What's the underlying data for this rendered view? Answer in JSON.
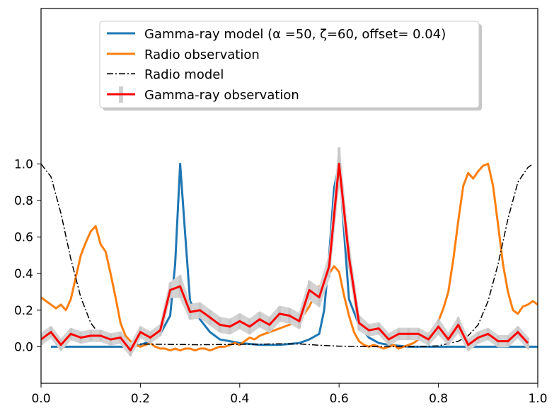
{
  "chart_data": {
    "type": "line",
    "title": "",
    "xlabel": "",
    "ylabel": "",
    "xlim": [
      0.0,
      1.0
    ],
    "ylim": [
      -0.2,
      1.85
    ],
    "x_ticks": [
      0.0,
      0.2,
      0.4,
      0.6,
      0.8,
      1.0
    ],
    "x_tick_labels": [
      "0.0",
      "0.2",
      "0.4",
      "0.6",
      "0.8",
      "1.0"
    ],
    "y_ticks": [
      0.0,
      0.2,
      0.4,
      0.6,
      0.8,
      1.0
    ],
    "y_tick_labels": [
      "0.0",
      "0.2",
      "0.4",
      "0.6",
      "0.8",
      "1.0"
    ],
    "grid": false,
    "legend_position": "top-center",
    "legend": [
      {
        "name": "gamma-model",
        "label": "Gamma-ray model (α =50, ζ=60, offset= 0.04)",
        "color": "#1f77b4",
        "style": "solid"
      },
      {
        "name": "radio-observation",
        "label": "Radio observation",
        "color": "#ff7f0e",
        "style": "solid"
      },
      {
        "name": "radio-model",
        "label": "Radio model",
        "color": "#000000",
        "style": "dashdot"
      },
      {
        "name": "gamma-observation",
        "label": "Gamma-ray observation",
        "color": "#ff0000",
        "style": "errorbar"
      }
    ],
    "series": [
      {
        "name": "Gamma-ray model",
        "color": "#1f77b4",
        "x": [
          0.02,
          0.06,
          0.1,
          0.14,
          0.18,
          0.2,
          0.22,
          0.24,
          0.26,
          0.27,
          0.28,
          0.29,
          0.3,
          0.32,
          0.34,
          0.36,
          0.38,
          0.4,
          0.44,
          0.48,
          0.52,
          0.54,
          0.56,
          0.57,
          0.58,
          0.59,
          0.6,
          0.61,
          0.62,
          0.64,
          0.66,
          0.68,
          0.7,
          0.74,
          0.8,
          0.9,
          1.0
        ],
        "y": [
          0.0,
          0.0,
          0.0,
          0.0,
          0.0,
          0.01,
          0.03,
          0.07,
          0.17,
          0.45,
          1.0,
          0.62,
          0.25,
          0.15,
          0.08,
          0.04,
          0.03,
          0.02,
          0.01,
          0.01,
          0.02,
          0.04,
          0.07,
          0.2,
          0.5,
          0.87,
          1.0,
          0.63,
          0.26,
          0.12,
          0.05,
          0.02,
          0.01,
          0.0,
          0.0,
          0.0,
          0.0
        ]
      },
      {
        "name": "Radio observation",
        "color": "#ff7f0e",
        "x": [
          0.0,
          0.01,
          0.02,
          0.03,
          0.04,
          0.05,
          0.06,
          0.07,
          0.08,
          0.09,
          0.1,
          0.11,
          0.12,
          0.13,
          0.14,
          0.15,
          0.16,
          0.17,
          0.18,
          0.19,
          0.2,
          0.21,
          0.22,
          0.23,
          0.24,
          0.25,
          0.26,
          0.27,
          0.28,
          0.29,
          0.3,
          0.31,
          0.32,
          0.33,
          0.34,
          0.35,
          0.36,
          0.37,
          0.38,
          0.39,
          0.4,
          0.41,
          0.42,
          0.43,
          0.44,
          0.45,
          0.46,
          0.47,
          0.48,
          0.49,
          0.5,
          0.51,
          0.52,
          0.53,
          0.54,
          0.55,
          0.56,
          0.57,
          0.58,
          0.59,
          0.6,
          0.61,
          0.62,
          0.63,
          0.64,
          0.65,
          0.66,
          0.67,
          0.68,
          0.69,
          0.7,
          0.71,
          0.72,
          0.73,
          0.74,
          0.75,
          0.76,
          0.77,
          0.78,
          0.79,
          0.8,
          0.81,
          0.82,
          0.83,
          0.84,
          0.85,
          0.86,
          0.87,
          0.88,
          0.89,
          0.9,
          0.91,
          0.92,
          0.93,
          0.94,
          0.95,
          0.96,
          0.97,
          0.98,
          0.99,
          1.0
        ],
        "y": [
          0.27,
          0.25,
          0.23,
          0.21,
          0.23,
          0.2,
          0.26,
          0.38,
          0.5,
          0.57,
          0.63,
          0.66,
          0.56,
          0.52,
          0.4,
          0.27,
          0.13,
          0.06,
          0.03,
          0.01,
          0.0,
          0.01,
          0.02,
          0.0,
          -0.01,
          -0.01,
          -0.02,
          -0.01,
          -0.02,
          -0.01,
          -0.01,
          -0.02,
          -0.01,
          -0.01,
          -0.02,
          -0.01,
          0.0,
          0.0,
          0.01,
          0.02,
          0.01,
          0.03,
          0.05,
          0.04,
          0.06,
          0.07,
          0.08,
          0.09,
          0.1,
          0.11,
          0.12,
          0.13,
          0.15,
          0.18,
          0.22,
          0.28,
          0.33,
          0.35,
          0.4,
          0.44,
          0.41,
          0.28,
          0.17,
          0.08,
          0.03,
          0.01,
          0.0,
          0.01,
          0.0,
          -0.01,
          0.0,
          0.01,
          -0.01,
          0.0,
          0.01,
          0.02,
          0.04,
          0.05,
          0.07,
          0.1,
          0.14,
          0.21,
          0.3,
          0.48,
          0.69,
          0.88,
          0.95,
          0.92,
          0.96,
          0.99,
          1.0,
          0.88,
          0.67,
          0.45,
          0.3,
          0.2,
          0.18,
          0.22,
          0.23,
          0.25,
          0.23
        ]
      },
      {
        "name": "Radio model",
        "color": "#000000",
        "x": [
          0.0,
          0.02,
          0.04,
          0.06,
          0.08,
          0.1,
          0.12,
          0.14,
          0.16,
          0.18,
          0.2,
          0.24,
          0.28,
          0.32,
          0.36,
          0.4,
          0.44,
          0.48,
          0.52,
          0.56,
          0.6,
          0.64,
          0.68,
          0.72,
          0.76,
          0.8,
          0.84,
          0.86,
          0.88,
          0.9,
          0.92,
          0.94,
          0.96,
          0.98,
          0.99
        ],
        "y": [
          1.0,
          0.93,
          0.73,
          0.48,
          0.27,
          0.13,
          0.06,
          0.03,
          0.02,
          0.015,
          0.015,
          0.013,
          0.012,
          0.011,
          0.012,
          0.013,
          0.014,
          0.016,
          0.015,
          0.008,
          0.003,
          0.001,
          0.0,
          0.0,
          0.0,
          0.005,
          0.03,
          0.06,
          0.12,
          0.25,
          0.45,
          0.7,
          0.9,
          0.98,
          1.0
        ]
      },
      {
        "name": "Gamma-ray observation",
        "color": "#ff0000",
        "x": [
          0.0,
          0.02,
          0.04,
          0.06,
          0.08,
          0.1,
          0.12,
          0.14,
          0.16,
          0.18,
          0.2,
          0.22,
          0.24,
          0.26,
          0.28,
          0.3,
          0.32,
          0.34,
          0.36,
          0.38,
          0.4,
          0.42,
          0.44,
          0.46,
          0.48,
          0.5,
          0.52,
          0.54,
          0.56,
          0.58,
          0.6,
          0.62,
          0.64,
          0.66,
          0.68,
          0.7,
          0.72,
          0.74,
          0.76,
          0.78,
          0.8,
          0.82,
          0.84,
          0.86,
          0.88,
          0.9,
          0.92,
          0.94,
          0.96,
          0.98
        ],
        "y": [
          0.04,
          0.08,
          0.01,
          0.07,
          0.05,
          0.06,
          0.06,
          0.04,
          0.05,
          -0.02,
          0.08,
          0.05,
          0.09,
          0.31,
          0.33,
          0.19,
          0.2,
          0.16,
          0.12,
          0.11,
          0.14,
          0.11,
          0.15,
          0.12,
          0.18,
          0.17,
          0.14,
          0.31,
          0.27,
          0.44,
          1.0,
          0.49,
          0.13,
          0.09,
          0.1,
          0.04,
          0.07,
          0.07,
          0.07,
          0.04,
          0.11,
          0.04,
          0.12,
          0.01,
          0.05,
          0.07,
          0.03,
          0.03,
          0.08,
          0.02
        ],
        "error": [
          0.03,
          0.03,
          0.03,
          0.03,
          0.03,
          0.03,
          0.03,
          0.03,
          0.03,
          0.03,
          0.03,
          0.03,
          0.03,
          0.04,
          0.06,
          0.04,
          0.04,
          0.04,
          0.04,
          0.04,
          0.04,
          0.04,
          0.04,
          0.04,
          0.04,
          0.04,
          0.04,
          0.05,
          0.05,
          0.06,
          0.09,
          0.06,
          0.04,
          0.03,
          0.03,
          0.03,
          0.03,
          0.03,
          0.03,
          0.03,
          0.04,
          0.03,
          0.04,
          0.03,
          0.03,
          0.03,
          0.03,
          0.03,
          0.03,
          0.03
        ]
      }
    ]
  }
}
